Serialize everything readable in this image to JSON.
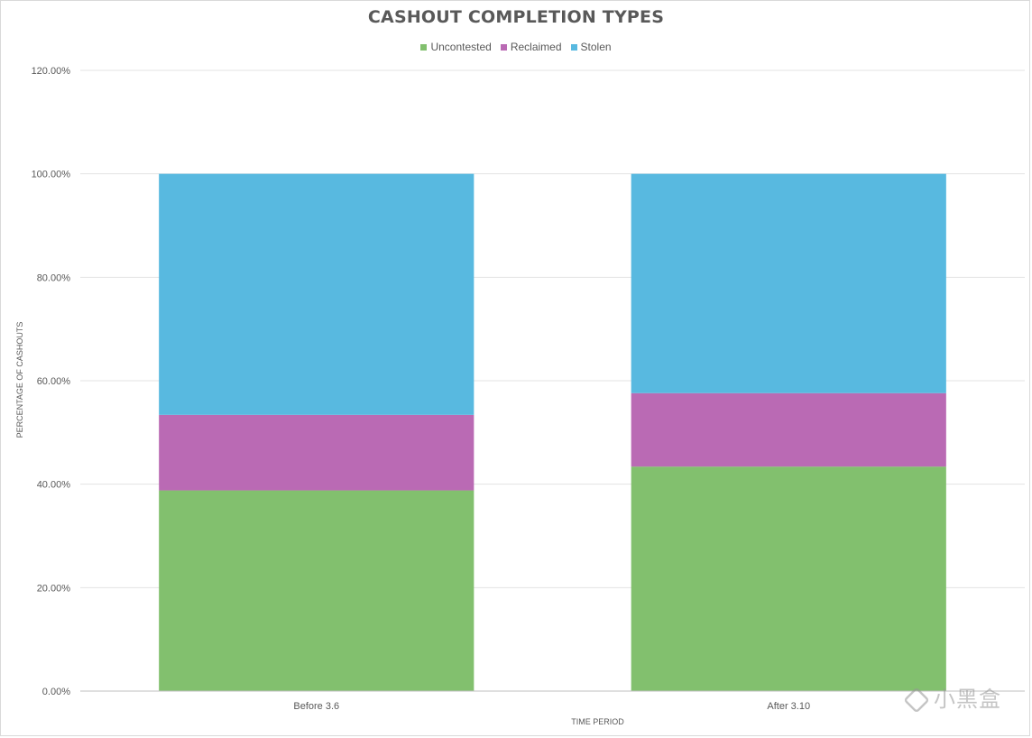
{
  "chart_data": {
    "type": "bar",
    "stacked": true,
    "title": "CASHOUT COMPLETION TYPES",
    "xlabel": "TIME PERIOD",
    "ylabel": "PERCENTAGE OF CASHOUTS",
    "categories": [
      "Before 3.6",
      "After 3.10"
    ],
    "series": [
      {
        "name": "Uncontested",
        "color": "#82c06e",
        "values": [
          0.388,
          0.434
        ]
      },
      {
        "name": "Reclaimed",
        "color": "#ba6ab4",
        "values": [
          0.146,
          0.142
        ]
      },
      {
        "name": "Stolen",
        "color": "#58b9e0",
        "values": [
          0.466,
          0.424
        ]
      }
    ],
    "ylim": [
      0,
      1.2
    ],
    "yticks": [
      0,
      0.2,
      0.4,
      0.6,
      0.8,
      1.0,
      1.2
    ],
    "ytick_labels": [
      "0.00%",
      "20.00%",
      "40.00%",
      "60.00%",
      "80.00%",
      "100.00%",
      "120.00%"
    ],
    "grid": true,
    "legend_position": "top"
  },
  "watermark": {
    "text": "小黑盒",
    "icon": "heybox-logo-icon"
  }
}
